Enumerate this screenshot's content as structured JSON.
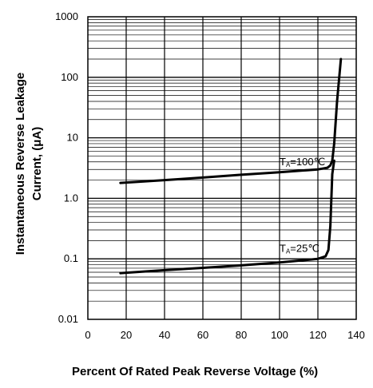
{
  "chart_data": {
    "type": "line",
    "xlabel": "Percent Of Rated Peak Reverse Voltage (%)",
    "ylabel_line1": "Instantaneous Reverse Leakage",
    "ylabel_line2": "Current, (μA)",
    "x_ticks": [
      "0",
      "20",
      "40",
      "60",
      "80",
      "100",
      "120",
      "140"
    ],
    "y_ticks": [
      "0.01",
      "0.1",
      "1.0",
      "10",
      "100",
      "1000"
    ],
    "xlim": [
      0,
      140
    ],
    "ylim": [
      0.01,
      1000
    ],
    "y_scale": "log",
    "grid": true,
    "series": [
      {
        "name": "TA=100℃",
        "label_main": "T",
        "label_sub": "A",
        "label_rest": "=100℃",
        "x": [
          17,
          40,
          60,
          80,
          100,
          120,
          125,
          126.5,
          127.5,
          128.5,
          130,
          132
        ],
        "y": [
          1.8,
          2.0,
          2.2,
          2.45,
          2.7,
          3.0,
          3.2,
          3.5,
          4.2,
          8,
          40,
          200
        ]
      },
      {
        "name": "TA=25℃",
        "label_main": "T",
        "label_sub": "A",
        "label_rest": "=25℃",
        "x": [
          17,
          40,
          60,
          80,
          100,
          120,
          124,
          125.5,
          126.5,
          127.5,
          128.5
        ],
        "y": [
          0.058,
          0.065,
          0.071,
          0.078,
          0.087,
          0.1,
          0.11,
          0.14,
          0.35,
          2.5,
          4.2
        ]
      }
    ]
  }
}
